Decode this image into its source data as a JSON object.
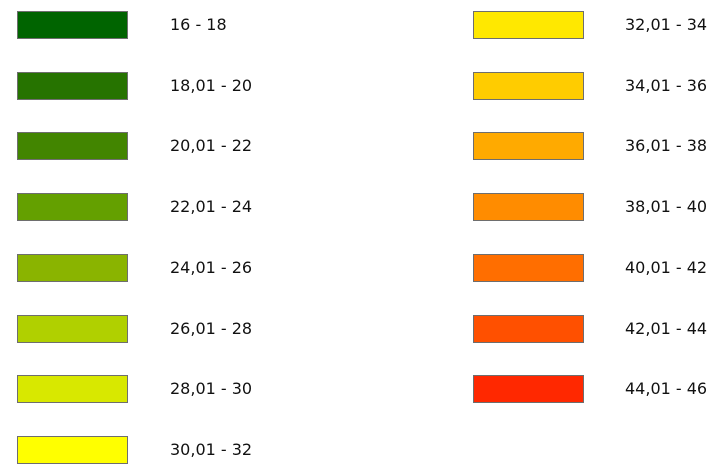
{
  "legend": {
    "items": [
      {
        "label": "16 - 18",
        "color": "#006400"
      },
      {
        "label": "18,01 - 20",
        "color": "#267300"
      },
      {
        "label": "20,01 - 22",
        "color": "#428500"
      },
      {
        "label": "22,01 - 24",
        "color": "#64a000"
      },
      {
        "label": "24,01 - 26",
        "color": "#8ab400"
      },
      {
        "label": "26,01 - 28",
        "color": "#b0d000"
      },
      {
        "label": "28,01 - 30",
        "color": "#d8e800"
      },
      {
        "label": "30,01 - 32",
        "color": "#ffff00"
      },
      {
        "label": "32,01 - 34",
        "color": "#ffe800"
      },
      {
        "label": "34,01 - 36",
        "color": "#ffcc00"
      },
      {
        "label": "36,01 - 38",
        "color": "#ffaa00"
      },
      {
        "label": "38,01 - 40",
        "color": "#ff8c00"
      },
      {
        "label": "40,01 - 42",
        "color": "#ff6e00"
      },
      {
        "label": "42,01 - 44",
        "color": "#ff5000"
      },
      {
        "label": "44,01 - 46",
        "color": "#ff2800"
      }
    ]
  }
}
